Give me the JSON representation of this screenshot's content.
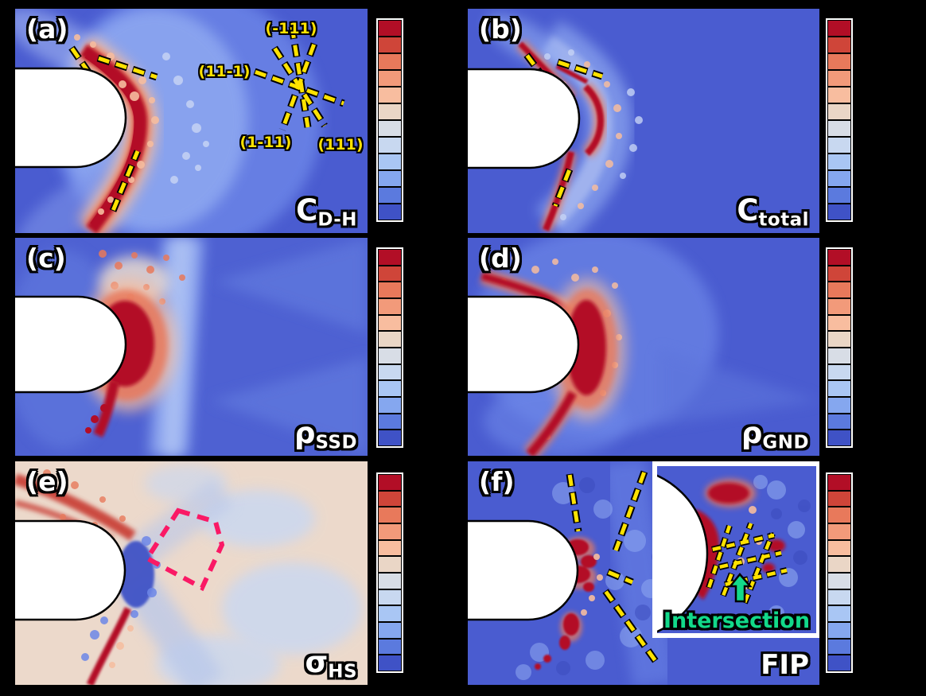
{
  "figure": {
    "background": "#000000"
  },
  "colors": {
    "colormap_top_to_bottom": [
      "#b20e26",
      "#cf4539",
      "#e8795b",
      "#f29a7a",
      "#f8bd9f",
      "#ead6c6",
      "#d8dde6",
      "#c8d8f0",
      "#a9c6f4",
      "#85a7ef",
      "#5b7ade",
      "#3f52c6"
    ],
    "panel_bg_blue": "#4a5cd0",
    "panel_bg_warm": "#ecd9cb",
    "slip_line_yellow": "#ffe200",
    "polygon_pink": "#fa1965",
    "intersection_green": "#12d98a",
    "hotspot_red": "#b30c26",
    "notch_white": "#ffffff"
  },
  "colorbar": {
    "segments": 12
  },
  "panels": [
    {
      "id": "a",
      "letter": "(a)",
      "quantity": "C",
      "subscript": "D-H"
    },
    {
      "id": "b",
      "letter": "(b)",
      "quantity": "C",
      "subscript": "total"
    },
    {
      "id": "c",
      "letter": "(c)",
      "quantity": "ρ",
      "subscript": "SSD"
    },
    {
      "id": "d",
      "letter": "(d)",
      "quantity": "ρ",
      "subscript": "GND"
    },
    {
      "id": "e",
      "letter": "(e)",
      "quantity": "σ",
      "subscript": "HS"
    },
    {
      "id": "f",
      "letter": "(f)",
      "quantity": "FIP",
      "subscript": ""
    }
  ],
  "slip_traces": {
    "labels": [
      "(-111)",
      "(11-1)",
      "(1-11)",
      "(111)"
    ]
  },
  "inset": {
    "label": "Intersection"
  }
}
